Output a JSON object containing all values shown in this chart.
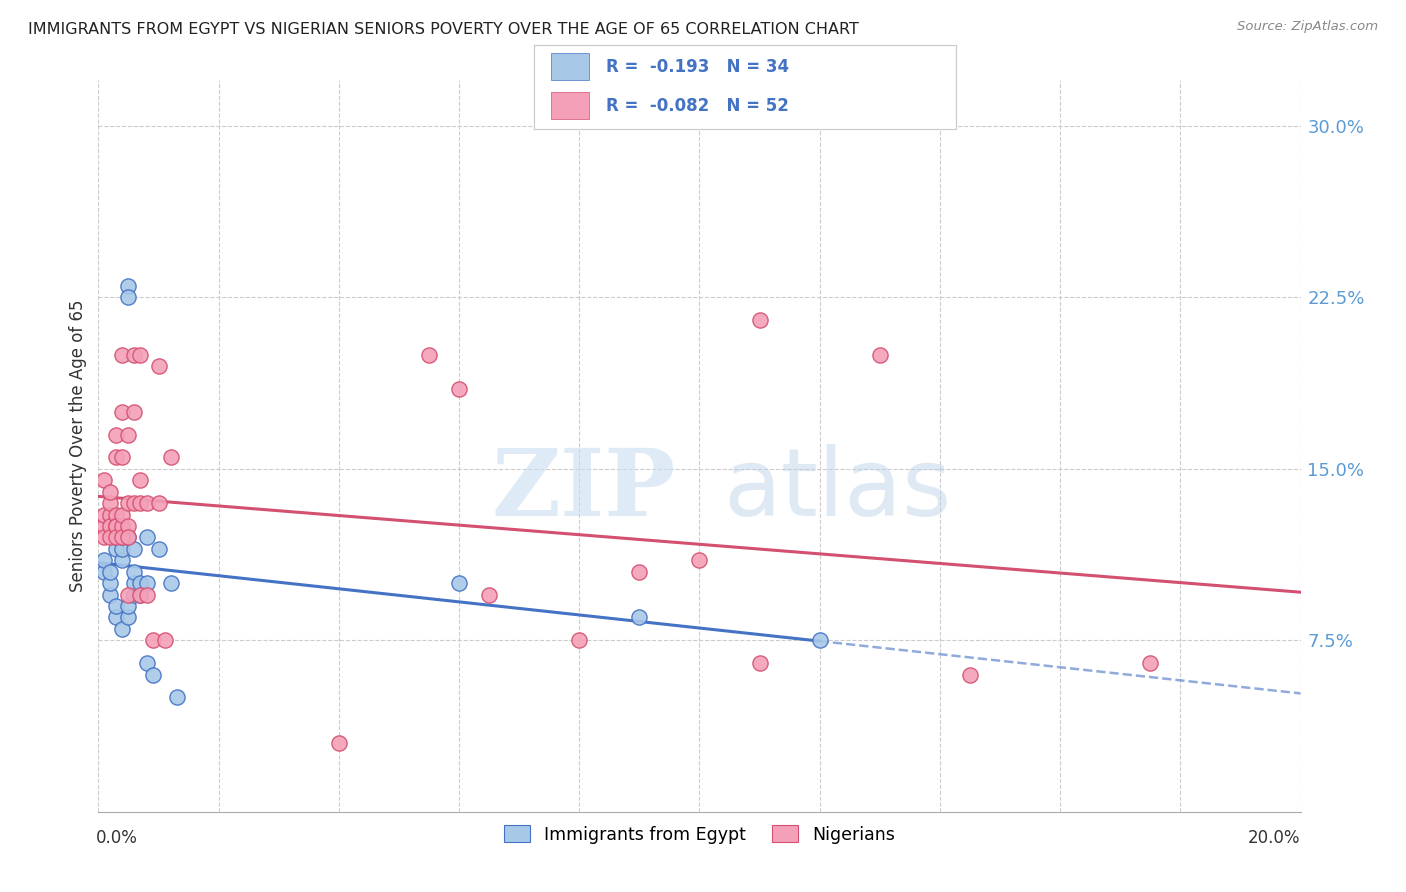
{
  "title": "IMMIGRANTS FROM EGYPT VS NIGERIAN SENIORS POVERTY OVER THE AGE OF 65 CORRELATION CHART",
  "source": "Source: ZipAtlas.com",
  "ylabel": "Seniors Poverty Over the Age of 65",
  "xmin": 0.0,
  "xmax": 0.2,
  "ymin": 0.0,
  "ymax": 0.32,
  "yticks": [
    0.075,
    0.15,
    0.225,
    0.3
  ],
  "ytick_labels": [
    "7.5%",
    "15.0%",
    "22.5%",
    "30.0%"
  ],
  "color_egypt": "#a8c8e8",
  "color_nigeria": "#f4a0b8",
  "color_egypt_line": "#4472c4",
  "color_nigeria_line": "#d45070",
  "watermark_zip": "ZIP",
  "watermark_atlas": "atlas",
  "legend_r1": "R =  -0.193   N = 34",
  "legend_r2": "R =  -0.082   N = 52",
  "legend_label1": "Immigrants from Egypt",
  "legend_label2": "Nigerians",
  "egypt_x": [
    0.001,
    0.001,
    0.002,
    0.002,
    0.002,
    0.003,
    0.003,
    0.003,
    0.003,
    0.004,
    0.004,
    0.004,
    0.004,
    0.005,
    0.005,
    0.005,
    0.005,
    0.005,
    0.006,
    0.006,
    0.006,
    0.006,
    0.007,
    0.007,
    0.008,
    0.008,
    0.008,
    0.009,
    0.01,
    0.012,
    0.013,
    0.06,
    0.09,
    0.12
  ],
  "egypt_y": [
    0.105,
    0.11,
    0.095,
    0.1,
    0.105,
    0.085,
    0.09,
    0.115,
    0.12,
    0.08,
    0.11,
    0.115,
    0.12,
    0.085,
    0.09,
    0.12,
    0.23,
    0.225,
    0.095,
    0.1,
    0.105,
    0.115,
    0.095,
    0.1,
    0.1,
    0.065,
    0.12,
    0.06,
    0.115,
    0.1,
    0.05,
    0.1,
    0.085,
    0.075
  ],
  "nigeria_x": [
    0.001,
    0.001,
    0.001,
    0.001,
    0.002,
    0.002,
    0.002,
    0.002,
    0.002,
    0.003,
    0.003,
    0.003,
    0.003,
    0.003,
    0.003,
    0.004,
    0.004,
    0.004,
    0.004,
    0.004,
    0.004,
    0.005,
    0.005,
    0.005,
    0.005,
    0.005,
    0.006,
    0.006,
    0.006,
    0.007,
    0.007,
    0.007,
    0.007,
    0.008,
    0.008,
    0.009,
    0.01,
    0.01,
    0.011,
    0.012,
    0.04,
    0.055,
    0.06,
    0.065,
    0.08,
    0.09,
    0.1,
    0.11,
    0.11,
    0.13,
    0.145,
    0.175
  ],
  "nigeria_y": [
    0.145,
    0.125,
    0.13,
    0.12,
    0.13,
    0.125,
    0.135,
    0.12,
    0.14,
    0.13,
    0.125,
    0.165,
    0.125,
    0.12,
    0.155,
    0.2,
    0.155,
    0.125,
    0.12,
    0.175,
    0.13,
    0.135,
    0.165,
    0.125,
    0.12,
    0.095,
    0.135,
    0.175,
    0.2,
    0.2,
    0.145,
    0.135,
    0.095,
    0.135,
    0.095,
    0.075,
    0.135,
    0.195,
    0.075,
    0.155,
    0.03,
    0.2,
    0.185,
    0.095,
    0.075,
    0.105,
    0.11,
    0.215,
    0.065,
    0.2,
    0.06,
    0.065
  ]
}
